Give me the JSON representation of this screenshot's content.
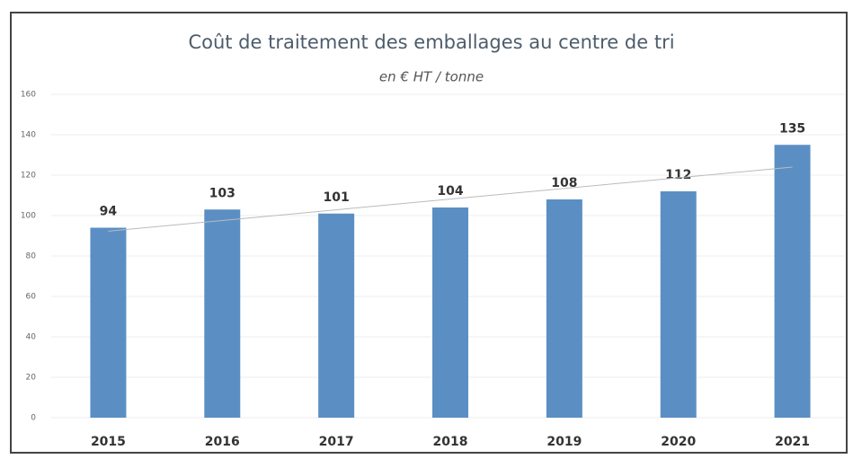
{
  "chart_data": {
    "type": "bar",
    "title": "Coût  de traitement des emballages au centre de tri",
    "subtitle": "en € HT / tonne",
    "categories": [
      "2015",
      "2016",
      "2017",
      "2018",
      "2019",
      "2020",
      "2021"
    ],
    "values": [
      94,
      103,
      101,
      104,
      108,
      112,
      135
    ],
    "color": "#5b8fc4",
    "ylim": [
      0,
      160
    ],
    "yticks": [
      0,
      20,
      40,
      60,
      80,
      100,
      120,
      140,
      160
    ],
    "grid": true,
    "trendline": true
  }
}
